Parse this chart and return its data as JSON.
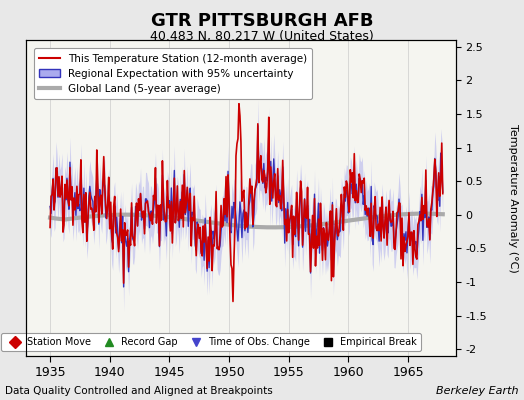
{
  "title": "GTR PITTSBURGH AFB",
  "subtitle": "40.483 N, 80.217 W (United States)",
  "xlabel_left": "Data Quality Controlled and Aligned at Breakpoints",
  "xlabel_right": "Berkeley Earth",
  "ylabel_right": "Temperature Anomaly (°C)",
  "xlim": [
    1933,
    1969
  ],
  "ylim": [
    -2.1,
    2.6
  ],
  "yticks": [
    -2,
    -1.5,
    -1,
    -0.5,
    0,
    0.5,
    1,
    1.5,
    2,
    2.5
  ],
  "xticks": [
    1935,
    1940,
    1945,
    1950,
    1955,
    1960,
    1965
  ],
  "background_color": "#e8e8e8",
  "plot_background": "#f5f5f0",
  "legend_items": [
    {
      "label": "This Temperature Station (12-month average)",
      "color": "#cc0000",
      "lw": 1.5
    },
    {
      "label": "Regional Expectation with 95% uncertainty",
      "color": "#4444cc",
      "lw": 1.5
    },
    {
      "label": "Global Land (5-year average)",
      "color": "#aaaaaa",
      "lw": 3
    }
  ],
  "bottom_legend": [
    {
      "label": "Station Move",
      "color": "#cc0000",
      "marker": "D"
    },
    {
      "label": "Record Gap",
      "color": "#228B22",
      "marker": "^"
    },
    {
      "label": "Time of Obs. Change",
      "color": "#4444cc",
      "marker": "v"
    },
    {
      "label": "Empirical Break",
      "color": "#000000",
      "marker": "s"
    }
  ]
}
